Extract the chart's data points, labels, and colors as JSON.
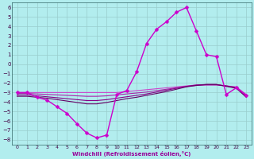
{
  "xlabel": "Windchill (Refroidissement éolien,°C)",
  "bg_color": "#b2edee",
  "grid_color": "#99cccc",
  "line_color": "#990099",
  "xlim": [
    -0.5,
    23.5
  ],
  "ylim": [
    -8.5,
    6.5
  ],
  "xticks": [
    0,
    1,
    2,
    3,
    4,
    5,
    6,
    7,
    8,
    9,
    10,
    11,
    12,
    13,
    14,
    15,
    16,
    17,
    18,
    19,
    20,
    21,
    22,
    23
  ],
  "yticks": [
    -8,
    -7,
    -6,
    -5,
    -4,
    -3,
    -2,
    -1,
    0,
    1,
    2,
    3,
    4,
    5,
    6
  ],
  "series_main": {
    "x": [
      0,
      1,
      2,
      3,
      4,
      5,
      6,
      7,
      8,
      9,
      10,
      11,
      12,
      13,
      14,
      15,
      16,
      17,
      18,
      19,
      20,
      21,
      22,
      23
    ],
    "y": [
      -3.0,
      -3.0,
      -3.5,
      -3.8,
      -4.5,
      -5.2,
      -6.3,
      -7.3,
      -7.8,
      -7.5,
      -3.2,
      -2.8,
      -0.8,
      2.2,
      3.7,
      4.5,
      5.5,
      6.0,
      3.5,
      1.0,
      0.8,
      -3.2,
      -2.5,
      -3.3
    ],
    "color": "#cc00cc",
    "linewidth": 1.0,
    "markersize": 2.5
  },
  "series_flat": [
    {
      "x": [
        0,
        1,
        2,
        3,
        4,
        5,
        6,
        7,
        8,
        9,
        10,
        11,
        12,
        13,
        14,
        15,
        16,
        17,
        18,
        19,
        20,
        21,
        22,
        23
      ],
      "y": [
        -3.0,
        -3.0,
        -3.0,
        -3.0,
        -3.0,
        -3.0,
        -3.0,
        -3.0,
        -3.0,
        -3.0,
        -3.0,
        -2.9,
        -2.8,
        -2.7,
        -2.6,
        -2.5,
        -2.4,
        -2.3,
        -2.2,
        -2.2,
        -2.2,
        -2.3,
        -2.4,
        -3.2
      ],
      "color": "#cc44cc",
      "linewidth": 0.8
    },
    {
      "x": [
        0,
        1,
        2,
        3,
        4,
        5,
        6,
        7,
        8,
        9,
        10,
        11,
        12,
        13,
        14,
        15,
        16,
        17,
        18,
        19,
        20,
        21,
        22,
        23
      ],
      "y": [
        -3.1,
        -3.1,
        -3.15,
        -3.2,
        -3.25,
        -3.3,
        -3.35,
        -3.4,
        -3.4,
        -3.35,
        -3.25,
        -3.15,
        -3.05,
        -2.95,
        -2.8,
        -2.65,
        -2.5,
        -2.35,
        -2.25,
        -2.2,
        -2.2,
        -2.3,
        -2.45,
        -3.3
      ],
      "color": "#aa22aa",
      "linewidth": 0.8
    },
    {
      "x": [
        0,
        1,
        2,
        3,
        4,
        5,
        6,
        7,
        8,
        9,
        10,
        11,
        12,
        13,
        14,
        15,
        16,
        17,
        18,
        19,
        20,
        21,
        22,
        23
      ],
      "y": [
        -3.25,
        -3.25,
        -3.35,
        -3.45,
        -3.55,
        -3.65,
        -3.75,
        -3.85,
        -3.85,
        -3.75,
        -3.6,
        -3.45,
        -3.3,
        -3.15,
        -2.95,
        -2.75,
        -2.55,
        -2.35,
        -2.2,
        -2.15,
        -2.15,
        -2.3,
        -2.5,
        -3.4
      ],
      "color": "#880088",
      "linewidth": 0.8
    },
    {
      "x": [
        0,
        1,
        2,
        3,
        4,
        5,
        6,
        7,
        8,
        9,
        10,
        11,
        12,
        13,
        14,
        15,
        16,
        17,
        18,
        19,
        20,
        21,
        22,
        23
      ],
      "y": [
        -3.4,
        -3.4,
        -3.5,
        -3.6,
        -3.75,
        -3.9,
        -4.05,
        -4.2,
        -4.2,
        -4.05,
        -3.85,
        -3.65,
        -3.5,
        -3.3,
        -3.1,
        -2.9,
        -2.65,
        -2.4,
        -2.25,
        -2.15,
        -2.15,
        -2.35,
        -2.55,
        -3.5
      ],
      "color": "#660066",
      "linewidth": 0.8
    }
  ]
}
